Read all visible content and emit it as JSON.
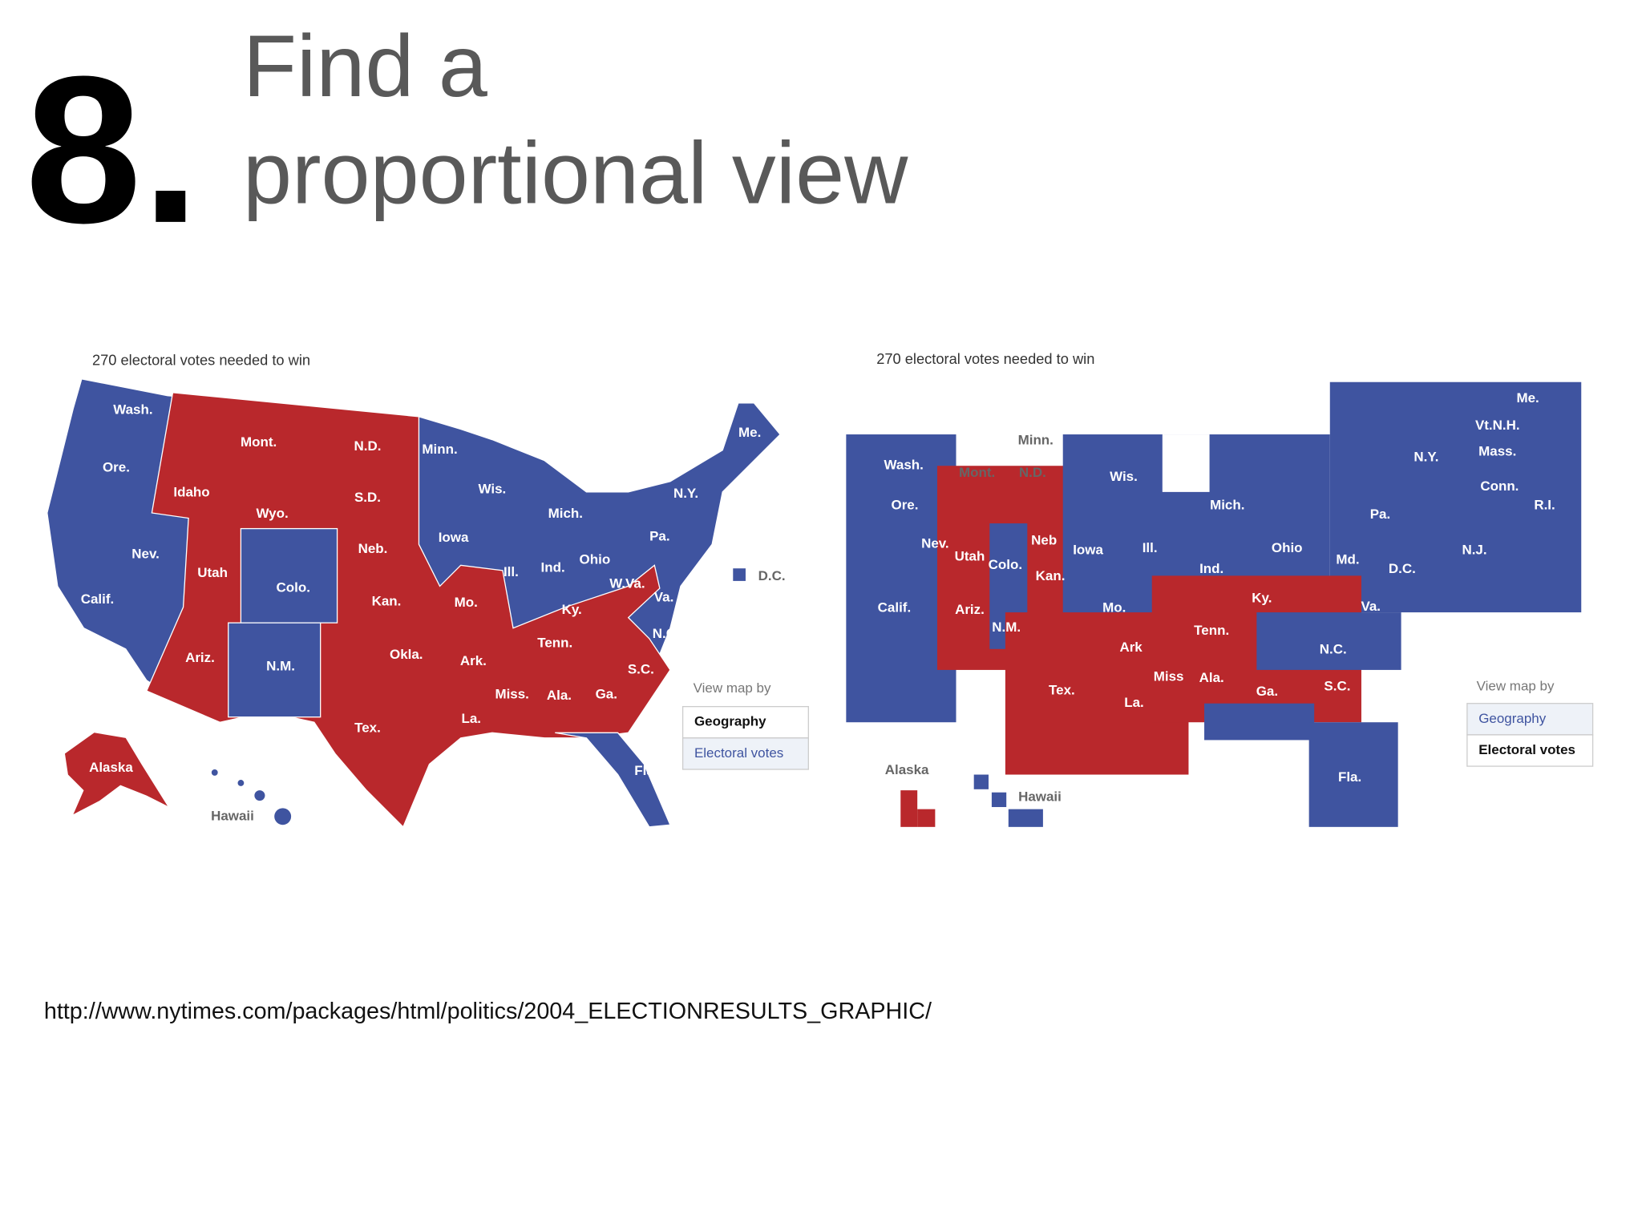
{
  "header": {
    "number": "8.",
    "title": [
      "Find a",
      "proportional view"
    ]
  },
  "maps": [
    {
      "caption": "270 electoral votes needed to win",
      "states": [
        "Wash.",
        "Ore.",
        "Idaho",
        "Mont.",
        "N.D.",
        "S.D.",
        "Wyo.",
        "Nev.",
        "Utah",
        "Colo.",
        "Neb.",
        "Kan.",
        "Calif.",
        "Ariz.",
        "N.M.",
        "Okla.",
        "Tex.",
        "Minn.",
        "Wis.",
        "Mich.",
        "Iowa",
        "Ill.",
        "Ind.",
        "Ohio",
        "Pa.",
        "N.Y.",
        "Me.",
        "Mo.",
        "Ky.",
        "W.Va.",
        "Va.",
        "Tenn.",
        "N.C.",
        "Ark.",
        "S.C.",
        "Miss.",
        "Ala.",
        "Ga.",
        "La.",
        "Fla.",
        "Alaska",
        "Hawaii",
        "D.C."
      ],
      "view_by": "View map by",
      "buttons": [
        "Geography",
        "Electoral votes"
      ]
    },
    {
      "caption": "270 electoral votes needed to win",
      "states": [
        "Wash.",
        "Ore.",
        "Mont.",
        "N.D.",
        "Minn.",
        "Wis.",
        "Mich.",
        "Nev.",
        "Utah",
        "Colo.",
        "Neb",
        "Iowa",
        "Ill.",
        "Ind.",
        "Ohio",
        "Pa.",
        "N.Y.",
        "Me.",
        "Vt.N.H.",
        "Mass.",
        "Conn.",
        "R.I.",
        "N.J.",
        "Md.",
        "D.C.",
        "Calif.",
        "Ariz.",
        "N.M.",
        "Kan.",
        "Mo.",
        "Ky.",
        "Va.",
        "Tenn.",
        "Ark",
        "N.C.",
        "Tex.",
        "Miss",
        "Ala.",
        "La.",
        "Ga.",
        "S.C.",
        "Fla.",
        "Alaska",
        "Hawaii"
      ],
      "view_by": "View map by",
      "buttons": [
        "Geography",
        "Electoral votes"
      ]
    }
  ],
  "footer": {
    "url": "http://www.nytimes.com/packages/html/politics/2004_ELECTIONRESULTS_GRAPHIC/"
  }
}
